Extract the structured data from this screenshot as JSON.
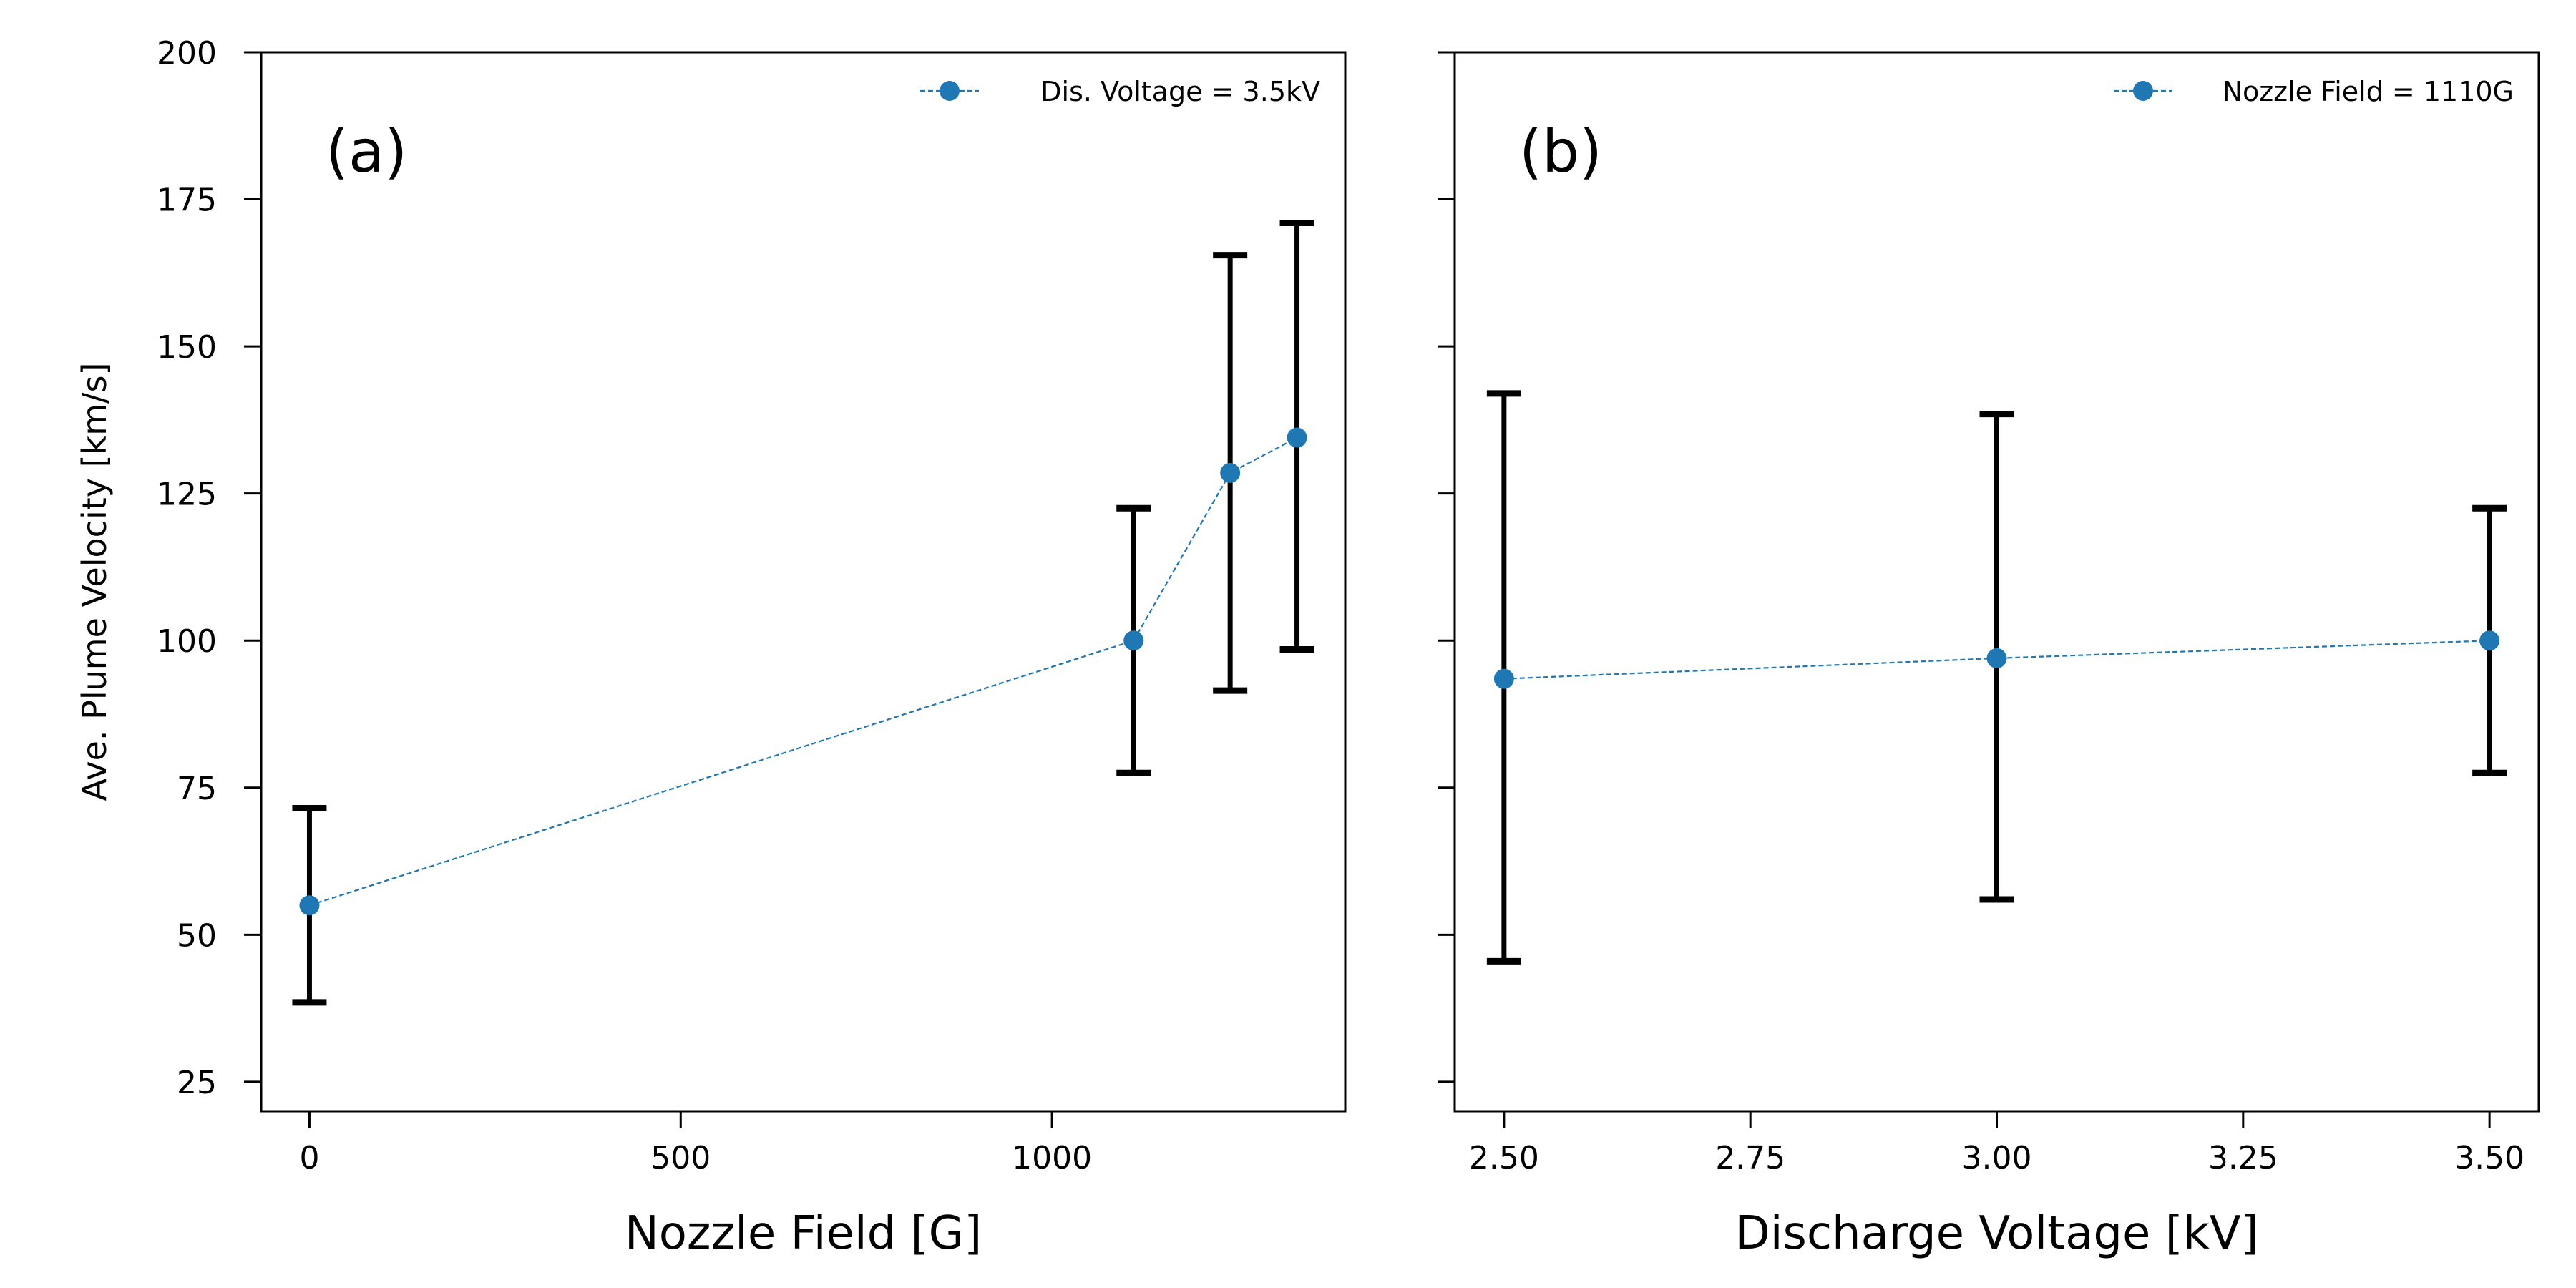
{
  "chart_data": [
    {
      "type": "scatter",
      "panel_label": "(a)",
      "xlabel": "Nozzle Field [G]",
      "ylabel": "Ave. Plume Velocity [km/s]",
      "xlim": [
        -65,
        1395
      ],
      "ylim": [
        20,
        200
      ],
      "xticks": [
        0,
        500,
        1000
      ],
      "xtick_labels": [
        "0",
        "500",
        "1000"
      ],
      "yticks": [
        25,
        50,
        75,
        100,
        125,
        150,
        175,
        200
      ],
      "ytick_labels": [
        "25",
        "50",
        "75",
        "100",
        "125",
        "150",
        "175",
        "200"
      ],
      "show_ytick_labels": true,
      "grid": false,
      "legend_position": "top-right",
      "series": [
        {
          "name": "Dis. Voltage = 3.5kV",
          "color": "#1f77b4",
          "line_style": "dashed",
          "x": [
            0,
            1110,
            1240,
            1330
          ],
          "y": [
            55,
            100,
            128.5,
            134.5
          ],
          "y_err_lower": [
            38.5,
            77.5,
            91.5,
            98.5
          ],
          "y_err_upper": [
            71.5,
            122.5,
            165.5,
            171
          ]
        }
      ]
    },
    {
      "type": "scatter",
      "panel_label": "(b)",
      "xlabel": "Discharge Voltage [kV]",
      "ylabel": "",
      "xlim": [
        2.45,
        3.55
      ],
      "ylim": [
        20,
        200
      ],
      "xticks": [
        2.5,
        2.75,
        3.0,
        3.25,
        3.5
      ],
      "xtick_labels": [
        "2.50",
        "2.75",
        "3.00",
        "3.25",
        "3.50"
      ],
      "yticks": [
        25,
        50,
        75,
        100,
        125,
        150,
        175,
        200
      ],
      "ytick_labels": [
        "25",
        "50",
        "75",
        "100",
        "125",
        "150",
        "175",
        "200"
      ],
      "show_ytick_labels": false,
      "grid": false,
      "legend_position": "top-right",
      "series": [
        {
          "name": "Nozzle Field = 1110G",
          "color": "#1f77b4",
          "line_style": "dashed",
          "x": [
            2.5,
            3.0,
            3.5
          ],
          "y": [
            93.5,
            97,
            100
          ],
          "y_err_lower": [
            45.5,
            56,
            77.5
          ],
          "y_err_upper": [
            142,
            138.5,
            122.5
          ]
        }
      ]
    }
  ]
}
